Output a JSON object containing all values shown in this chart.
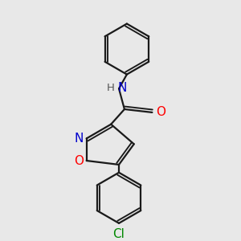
{
  "bg_color": "#e8e8e8",
  "bond_color": "#1a1a1a",
  "line_width": 1.6,
  "atom_colors": {
    "N": "#0000cc",
    "O": "#ff0000",
    "Cl": "#008800",
    "H_color": "#555555"
  },
  "font_size": 11,
  "font_size_h": 9.5,
  "fig_size": [
    3.0,
    3.0
  ],
  "dpi": 100
}
